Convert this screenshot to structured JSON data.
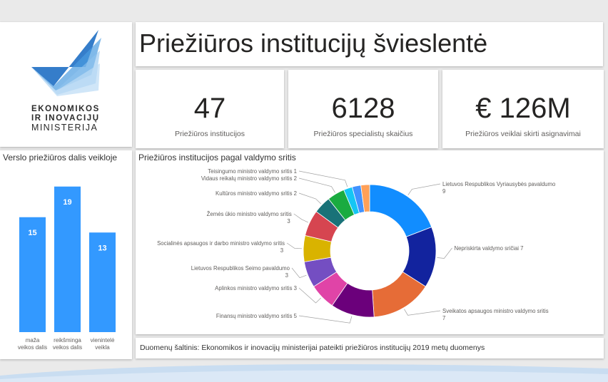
{
  "logo": {
    "line1": "EKONOMIKOS",
    "line2": "IR INOVACIJŲ",
    "line3": "MINISTERIJA"
  },
  "dashboard": {
    "title": "Priežiūros institucijų švieslentė"
  },
  "kpis": [
    {
      "value": "47",
      "label": "Priežiūros institucijos"
    },
    {
      "value": "6128",
      "label": "Priežiūros specialistų skaičius"
    },
    {
      "value": "€ 126M",
      "label": "Priežiūros veiklai skirti asignavimai"
    }
  ],
  "source_note": "Duomenų šaltinis: Ekonomikos ir inovacijų ministerijai pateikti priežiūros institucijų 2019 metų duomenys",
  "colors": {
    "bar": "#3399ff",
    "accent_blue": "#1a73c9"
  },
  "chart_data": [
    {
      "type": "bar",
      "title": "Verslo priežiūros dalis veikloje",
      "categories": [
        "maža veikos dalis",
        "reikšminga veikos dalis",
        "vienintelė veikla"
      ],
      "category_lines": [
        [
          "maža",
          "veikos dalis"
        ],
        [
          "reikšminga",
          "veikos dalis"
        ],
        [
          "vienintelė",
          "veikla"
        ]
      ],
      "values": [
        15,
        19,
        13
      ],
      "ylim": [
        0,
        20
      ],
      "color": "#3399ff",
      "grid": false,
      "legend": "none"
    },
    {
      "type": "pie",
      "donut": true,
      "title": "Priežiūros institucijos pagal valdymo sritis",
      "slices": [
        {
          "label": "Lietuvos Respublikos Vyriausybės pavaldumo",
          "value": 9,
          "color": "#118dff",
          "side": "right"
        },
        {
          "label": "Nepriskirta valdymo sričiai",
          "value": 7,
          "color": "#12239e",
          "side": "right",
          "inline": true
        },
        {
          "label": "Sveikatos apsaugos ministro valdymo sritis",
          "value": 7,
          "color": "#e66c37",
          "side": "right"
        },
        {
          "label": "Finansų ministro valdymo sritis",
          "value": 5,
          "color": "#6b007b",
          "side": "left",
          "inline": true
        },
        {
          "label": "Aplinkos ministro valdymo sritis",
          "value": 3,
          "color": "#e044a7",
          "side": "left",
          "inline": true
        },
        {
          "label": "Lietuvos Respublikos Seimo pavaldumo",
          "value": 3,
          "color": "#744ec2",
          "side": "left"
        },
        {
          "label": "Socialinės apsaugos ir darbo ministro valdymo sritis",
          "value": 3,
          "color": "#d9b300",
          "side": "left"
        },
        {
          "label": "Žemės ūkio ministro valdymo sritis",
          "value": 3,
          "color": "#d64550",
          "side": "left"
        },
        {
          "label": "Kultūros ministro valdymo sritis",
          "value": 2,
          "color": "#197278",
          "side": "left",
          "inline": true
        },
        {
          "label": "Vidaus reikalų ministro valdymo sritis",
          "value": 2,
          "color": "#1aab40",
          "side": "left",
          "inline": true
        },
        {
          "label": "Teisingumo ministro valdymo sritis",
          "value": 1,
          "color": "#15c6f4",
          "side": "left",
          "inline": true
        },
        {
          "label": "",
          "value": 1,
          "color": "#4092ff",
          "side": "left",
          "hidden": true
        },
        {
          "label": "",
          "value": 1,
          "color": "#ffa058",
          "side": "left",
          "hidden": true
        }
      ],
      "legend": "none"
    }
  ]
}
